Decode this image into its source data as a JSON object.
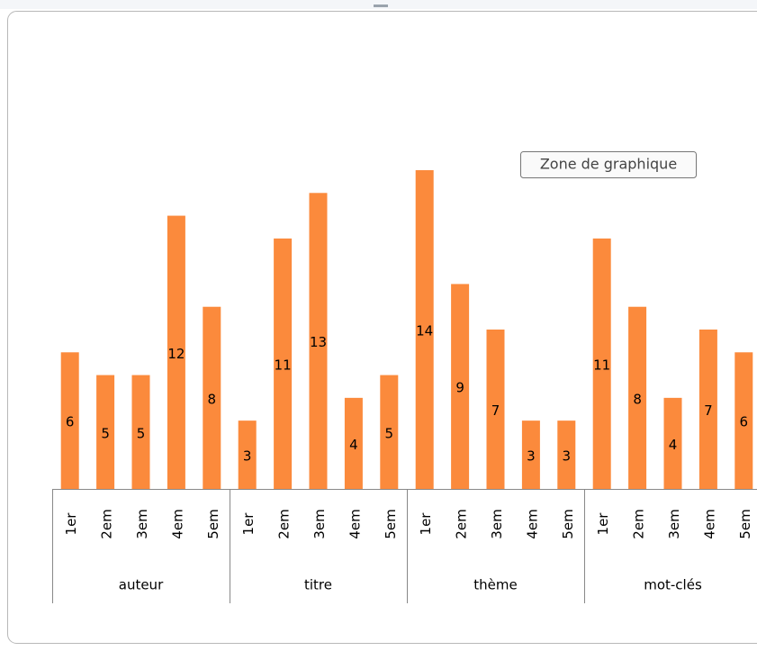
{
  "chart_data": {
    "type": "bar",
    "groups": [
      "auteur",
      "titre",
      "thème",
      "mot-clés"
    ],
    "categories": [
      "1er",
      "2em",
      "3em",
      "4em",
      "5em",
      "1er",
      "2em",
      "3em",
      "4em",
      "5em",
      "1er",
      "2em",
      "3em",
      "4em",
      "5em",
      "1er",
      "2em",
      "3em",
      "4em",
      "5em"
    ],
    "values": [
      6,
      5,
      5,
      12,
      8,
      3,
      11,
      13,
      4,
      5,
      14,
      9,
      7,
      3,
      3,
      11,
      8,
      4,
      7,
      6
    ],
    "color": "#fb8a3c",
    "annotation": "Zone de graphique"
  }
}
